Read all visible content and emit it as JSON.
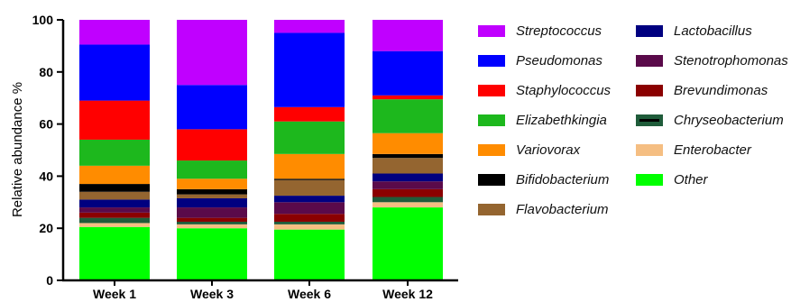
{
  "chart_data": {
    "type": "bar",
    "stacked": true,
    "categories": [
      "Week 1",
      "Week 3",
      "Week 6",
      "Week 12"
    ],
    "ylabel": "Relative abundance %",
    "ylim": [
      0,
      100
    ],
    "yticks": [
      0,
      20,
      40,
      60,
      80,
      100
    ],
    "legend_position": "right",
    "series": [
      {
        "name": "Other",
        "color": "#00FF00",
        "values": [
          20.5,
          20.0,
          19.5,
          28.0
        ]
      },
      {
        "name": "Enterobacter",
        "color": "#F5BE82",
        "values": [
          1.5,
          1.5,
          2.0,
          2.0
        ]
      },
      {
        "name": "Chryseobacterium",
        "color": "#1F5C3A",
        "values": [
          2.0,
          1.0,
          1.0,
          2.0
        ]
      },
      {
        "name": "Brevundimonas",
        "color": "#8B0000",
        "values": [
          2.0,
          1.5,
          3.0,
          3.0
        ]
      },
      {
        "name": "Stenotrophomonas",
        "color": "#5A0A4A",
        "values": [
          2.0,
          4.0,
          4.5,
          3.0
        ]
      },
      {
        "name": "Lactobacillus",
        "color": "#000080",
        "values": [
          3.0,
          3.5,
          2.5,
          3.0
        ]
      },
      {
        "name": "Flavobacterium",
        "color": "#946530",
        "values": [
          3.0,
          1.5,
          6.0,
          6.0
        ]
      },
      {
        "name": "Bifidobacterium",
        "color": "#000000",
        "values": [
          3.0,
          2.0,
          0.5,
          1.5
        ]
      },
      {
        "name": "Variovorax",
        "color": "#FF8C00",
        "values": [
          7.0,
          4.0,
          9.5,
          8.0
        ]
      },
      {
        "name": "Elizabethkingia",
        "color": "#1DB81D",
        "values": [
          10.0,
          7.0,
          12.5,
          13.0
        ]
      },
      {
        "name": "Staphylococcus",
        "color": "#FF0000",
        "values": [
          15.0,
          12.0,
          5.5,
          1.5
        ]
      },
      {
        "name": "Pseudomonas",
        "color": "#0000FF",
        "values": [
          21.5,
          17.0,
          28.5,
          17.0
        ]
      },
      {
        "name": "Streptococcus",
        "color": "#C000FF",
        "values": [
          9.5,
          25.0,
          5.0,
          12.0
        ]
      }
    ],
    "legend_order": [
      [
        "Streptococcus",
        "Pseudomonas",
        "Staphylococcus",
        "Elizabethkingia",
        "Variovorax",
        "Bifidobacterium",
        "Flavobacterium"
      ],
      [
        "Lactobacillus",
        "Stenotrophomonas",
        "Brevundimonas",
        "Chryseobacterium",
        "Enterobacter",
        "Other"
      ]
    ]
  }
}
